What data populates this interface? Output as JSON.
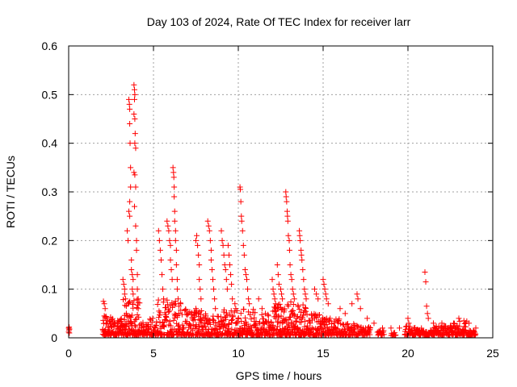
{
  "chart_data": {
    "type": "scatter",
    "title": "Day 103 of 2024, Rate Of TEC Index for receiver larr",
    "xlabel": "GPS time / hours",
    "ylabel": "ROTI / TECUs",
    "xlim": [
      0,
      25
    ],
    "ylim": [
      0,
      0.6
    ],
    "grid": true,
    "marker": "+",
    "color": "#ff0000",
    "x_ticks": [
      "0",
      "5",
      "10",
      "15",
      "20",
      "25"
    ],
    "y_ticks": [
      "0",
      "0.1",
      "0.2",
      "0.3",
      "0.4",
      "0.5",
      "0.6"
    ],
    "points": [
      [
        0.0,
        0.02
      ],
      [
        0.0,
        0.012
      ],
      [
        0.02,
        0.016
      ],
      [
        0.03,
        0.022
      ],
      [
        0.04,
        0.01
      ],
      [
        0.05,
        0.018
      ],
      [
        2.05,
        0.075
      ],
      [
        2.1,
        0.07
      ],
      [
        2.15,
        0.06
      ],
      [
        2.1,
        0.045
      ],
      [
        2.2,
        0.03
      ],
      [
        3.2,
        0.12
      ],
      [
        3.25,
        0.11
      ],
      [
        3.3,
        0.1
      ],
      [
        3.3,
        0.09
      ],
      [
        3.35,
        0.08
      ],
      [
        3.4,
        0.065
      ],
      [
        3.45,
        0.22
      ],
      [
        3.5,
        0.2
      ],
      [
        3.55,
        0.49
      ],
      [
        3.58,
        0.48
      ],
      [
        3.6,
        0.47
      ],
      [
        3.6,
        0.44
      ],
      [
        3.62,
        0.4
      ],
      [
        3.65,
        0.35
      ],
      [
        3.65,
        0.31
      ],
      [
        3.6,
        0.28
      ],
      [
        3.55,
        0.26
      ],
      [
        3.6,
        0.25
      ],
      [
        3.7,
        0.16
      ],
      [
        3.7,
        0.14
      ],
      [
        3.75,
        0.13
      ],
      [
        3.8,
        0.12
      ],
      [
        3.75,
        0.1
      ],
      [
        3.8,
        0.09
      ],
      [
        3.85,
        0.52
      ],
      [
        3.88,
        0.51
      ],
      [
        3.9,
        0.5
      ],
      [
        3.88,
        0.49
      ],
      [
        3.85,
        0.46
      ],
      [
        3.9,
        0.45
      ],
      [
        3.92,
        0.42
      ],
      [
        3.9,
        0.4
      ],
      [
        3.95,
        0.39
      ],
      [
        3.85,
        0.34
      ],
      [
        3.9,
        0.335
      ],
      [
        3.95,
        0.31
      ],
      [
        3.88,
        0.27
      ],
      [
        3.95,
        0.23
      ],
      [
        4.0,
        0.2
      ],
      [
        4.0,
        0.18
      ],
      [
        4.05,
        0.13
      ],
      [
        4.05,
        0.1
      ],
      [
        4.1,
        0.08
      ],
      [
        4.1,
        0.06
      ],
      [
        3.5,
        0.07
      ],
      [
        3.4,
        0.05
      ],
      [
        5.3,
        0.22
      ],
      [
        5.35,
        0.2
      ],
      [
        5.4,
        0.18
      ],
      [
        5.45,
        0.16
      ],
      [
        5.5,
        0.13
      ],
      [
        5.55,
        0.1
      ],
      [
        5.6,
        0.08
      ],
      [
        5.8,
        0.24
      ],
      [
        5.85,
        0.23
      ],
      [
        5.9,
        0.22
      ],
      [
        5.95,
        0.2
      ],
      [
        6.0,
        0.19
      ],
      [
        6.0,
        0.16
      ],
      [
        6.05,
        0.14
      ],
      [
        6.1,
        0.12
      ],
      [
        6.15,
        0.35
      ],
      [
        6.18,
        0.34
      ],
      [
        6.2,
        0.33
      ],
      [
        6.22,
        0.31
      ],
      [
        6.22,
        0.29
      ],
      [
        6.25,
        0.26
      ],
      [
        6.25,
        0.24
      ],
      [
        6.3,
        0.22
      ],
      [
        6.3,
        0.2
      ],
      [
        6.35,
        0.18
      ],
      [
        6.35,
        0.15
      ],
      [
        6.4,
        0.12
      ],
      [
        6.4,
        0.1
      ],
      [
        6.45,
        0.08
      ],
      [
        6.5,
        0.065
      ],
      [
        7.5,
        0.2
      ],
      [
        7.55,
        0.21
      ],
      [
        7.6,
        0.19
      ],
      [
        7.65,
        0.17
      ],
      [
        7.7,
        0.15
      ],
      [
        7.7,
        0.12
      ],
      [
        7.75,
        0.1
      ],
      [
        7.8,
        0.08
      ],
      [
        7.5,
        0.06
      ],
      [
        8.2,
        0.24
      ],
      [
        8.25,
        0.23
      ],
      [
        8.3,
        0.22
      ],
      [
        8.35,
        0.2
      ],
      [
        8.4,
        0.18
      ],
      [
        8.4,
        0.16
      ],
      [
        8.45,
        0.14
      ],
      [
        8.5,
        0.12
      ],
      [
        8.55,
        0.1
      ],
      [
        8.6,
        0.08
      ],
      [
        8.65,
        0.06
      ],
      [
        9.0,
        0.22
      ],
      [
        9.05,
        0.2
      ],
      [
        9.1,
        0.19
      ],
      [
        9.15,
        0.17
      ],
      [
        9.2,
        0.15
      ],
      [
        9.25,
        0.14
      ],
      [
        9.3,
        0.12
      ],
      [
        9.35,
        0.1
      ],
      [
        9.4,
        0.19
      ],
      [
        9.45,
        0.17
      ],
      [
        9.5,
        0.15
      ],
      [
        9.55,
        0.13
      ],
      [
        9.6,
        0.11
      ],
      [
        9.65,
        0.08
      ],
      [
        9.8,
        0.07
      ],
      [
        9.85,
        0.06
      ],
      [
        10.1,
        0.31
      ],
      [
        10.12,
        0.305
      ],
      [
        10.15,
        0.28
      ],
      [
        10.18,
        0.25
      ],
      [
        10.2,
        0.24
      ],
      [
        10.25,
        0.22
      ],
      [
        10.3,
        0.19
      ],
      [
        10.35,
        0.17
      ],
      [
        10.4,
        0.14
      ],
      [
        10.45,
        0.13
      ],
      [
        10.5,
        0.12
      ],
      [
        10.55,
        0.1
      ],
      [
        10.6,
        0.08
      ],
      [
        10.65,
        0.07
      ],
      [
        11.2,
        0.08
      ],
      [
        11.4,
        0.06
      ],
      [
        11.6,
        0.05
      ],
      [
        12.0,
        0.12
      ],
      [
        12.05,
        0.1
      ],
      [
        12.1,
        0.09
      ],
      [
        12.15,
        0.08
      ],
      [
        12.2,
        0.07
      ],
      [
        12.3,
        0.15
      ],
      [
        12.35,
        0.13
      ],
      [
        12.4,
        0.11
      ],
      [
        12.5,
        0.1
      ],
      [
        12.55,
        0.09
      ],
      [
        12.6,
        0.08
      ],
      [
        12.8,
        0.3
      ],
      [
        12.82,
        0.29
      ],
      [
        12.85,
        0.28
      ],
      [
        12.88,
        0.26
      ],
      [
        12.9,
        0.25
      ],
      [
        12.92,
        0.24
      ],
      [
        12.95,
        0.21
      ],
      [
        13.0,
        0.2
      ],
      [
        13.02,
        0.18
      ],
      [
        13.05,
        0.15
      ],
      [
        13.1,
        0.13
      ],
      [
        13.15,
        0.12
      ],
      [
        13.2,
        0.1
      ],
      [
        13.25,
        0.09
      ],
      [
        13.3,
        0.08
      ],
      [
        13.6,
        0.22
      ],
      [
        13.62,
        0.21
      ],
      [
        13.65,
        0.2
      ],
      [
        13.7,
        0.18
      ],
      [
        13.72,
        0.17
      ],
      [
        13.75,
        0.16
      ],
      [
        13.8,
        0.14
      ],
      [
        13.85,
        0.12
      ],
      [
        13.9,
        0.1
      ],
      [
        13.95,
        0.09
      ],
      [
        14.0,
        0.08
      ],
      [
        14.5,
        0.1
      ],
      [
        14.6,
        0.09
      ],
      [
        14.7,
        0.08
      ],
      [
        15.0,
        0.12
      ],
      [
        15.05,
        0.11
      ],
      [
        15.1,
        0.1
      ],
      [
        15.15,
        0.09
      ],
      [
        15.2,
        0.08
      ],
      [
        15.3,
        0.07
      ],
      [
        16.0,
        0.06
      ],
      [
        16.3,
        0.05
      ],
      [
        16.7,
        0.07
      ],
      [
        17.0,
        0.09
      ],
      [
        17.05,
        0.08
      ],
      [
        17.2,
        0.06
      ],
      [
        17.6,
        0.04
      ],
      [
        18.0,
        0.03
      ],
      [
        18.5,
        0.02
      ],
      [
        19.0,
        0.02
      ],
      [
        19.5,
        0.02
      ],
      [
        20.0,
        0.04
      ],
      [
        20.05,
        0.03
      ],
      [
        21.0,
        0.135
      ],
      [
        21.05,
        0.115
      ],
      [
        21.1,
        0.065
      ],
      [
        21.15,
        0.05
      ],
      [
        21.2,
        0.04
      ],
      [
        21.5,
        0.03
      ],
      [
        22.0,
        0.03
      ],
      [
        22.5,
        0.025
      ],
      [
        23.0,
        0.04
      ],
      [
        23.3,
        0.035
      ],
      [
        23.6,
        0.03
      ],
      [
        24.0,
        0.02
      ]
    ],
    "dense_bands": [
      [
        2.0,
        2.5,
        0.005,
        0.045,
        10
      ],
      [
        2.5,
        3.2,
        0.005,
        0.04,
        14
      ],
      [
        3.2,
        4.2,
        0.005,
        0.08,
        22
      ],
      [
        4.2,
        5.2,
        0.005,
        0.04,
        16
      ],
      [
        5.2,
        6.7,
        0.005,
        0.08,
        28
      ],
      [
        6.7,
        7.5,
        0.005,
        0.06,
        14
      ],
      [
        7.5,
        8.2,
        0.005,
        0.06,
        14
      ],
      [
        8.2,
        9.0,
        0.005,
        0.05,
        14
      ],
      [
        9.0,
        10.0,
        0.005,
        0.06,
        18
      ],
      [
        10.0,
        11.0,
        0.005,
        0.06,
        18
      ],
      [
        11.0,
        12.0,
        0.005,
        0.05,
        18
      ],
      [
        12.0,
        13.0,
        0.005,
        0.07,
        22
      ],
      [
        13.0,
        14.0,
        0.005,
        0.08,
        22
      ],
      [
        14.0,
        15.0,
        0.005,
        0.05,
        18
      ],
      [
        15.0,
        16.0,
        0.005,
        0.04,
        16
      ],
      [
        16.0,
        17.0,
        0.005,
        0.03,
        14
      ],
      [
        17.0,
        17.8,
        0.005,
        0.025,
        10
      ],
      [
        18.2,
        18.6,
        0.005,
        0.015,
        4
      ],
      [
        19.0,
        19.3,
        0.005,
        0.012,
        3
      ],
      [
        19.8,
        20.5,
        0.005,
        0.025,
        10
      ],
      [
        20.5,
        21.5,
        0.005,
        0.02,
        14
      ],
      [
        21.5,
        22.5,
        0.005,
        0.025,
        16
      ],
      [
        22.5,
        23.5,
        0.005,
        0.035,
        16
      ],
      [
        23.5,
        24.0,
        0.005,
        0.02,
        8
      ]
    ]
  }
}
